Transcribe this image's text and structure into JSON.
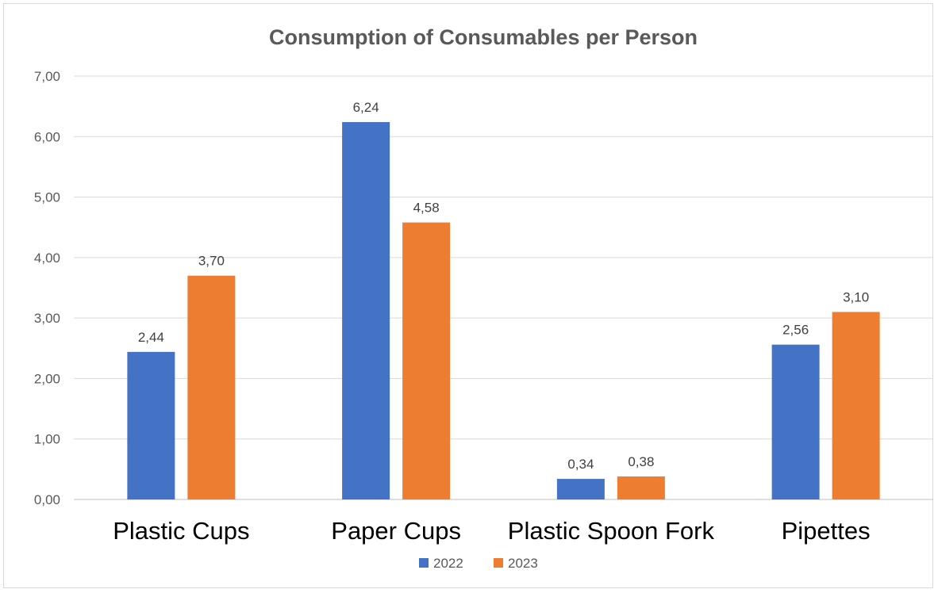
{
  "chart_data": {
    "type": "bar",
    "title": "Consumption of Consumables per Person",
    "xlabel": "",
    "ylabel": "",
    "categories": [
      "Plastic Cups",
      "Paper Cups",
      "Plastic Spoon Fork",
      "Pipettes"
    ],
    "series": [
      {
        "name": "2022",
        "color": "#4472c4",
        "values": [
          2.44,
          6.24,
          0.34,
          2.56
        ],
        "labels": [
          "2,44",
          "6,24",
          "0,34",
          "2,56"
        ]
      },
      {
        "name": "2023",
        "color": "#ed7d31",
        "values": [
          3.7,
          4.58,
          0.38,
          3.1
        ],
        "labels": [
          "3,70",
          "4,58",
          "0,38",
          "3,10"
        ]
      }
    ],
    "ylim": [
      0,
      7
    ],
    "yticks": [
      0,
      1,
      2,
      3,
      4,
      5,
      6,
      7
    ],
    "ytick_labels": [
      "0,00",
      "1,00",
      "2,00",
      "3,00",
      "4,00",
      "5,00",
      "6,00",
      "7,00"
    ],
    "grid": true,
    "legend": "bottom"
  }
}
